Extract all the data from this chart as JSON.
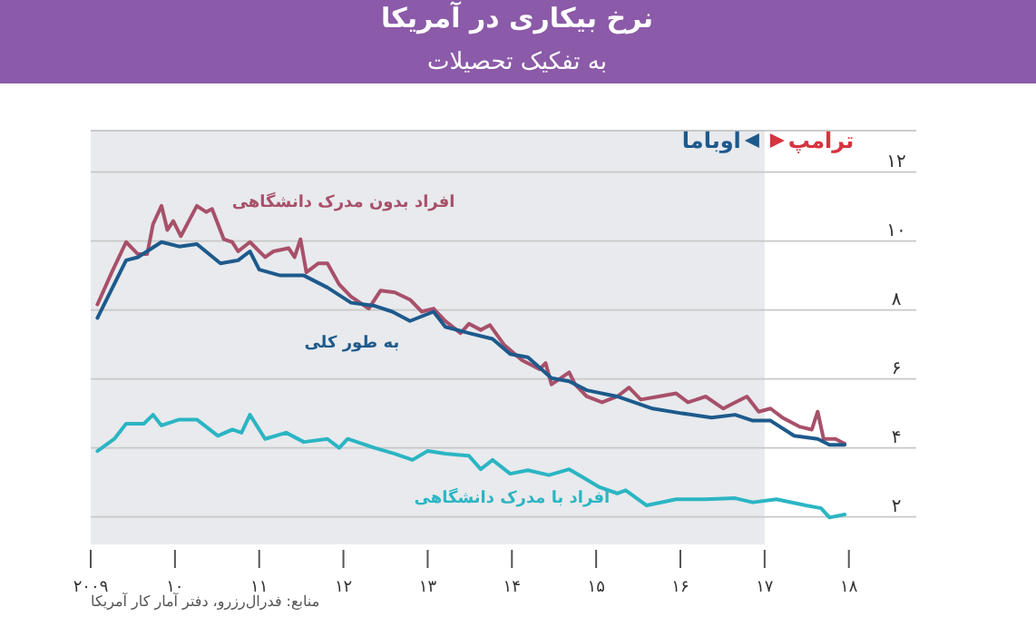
{
  "chart_data": {
    "type": "line",
    "title": "نرخ بیکاری در آمریکا",
    "subtitle": "به تفکیک تحصیلات",
    "xlim": [
      2009,
      2018.8
    ],
    "ylim": [
      1.2,
      13.2
    ],
    "xticks": [
      {
        "value": 2009,
        "label": "۲۰۰۹"
      },
      {
        "value": 2010,
        "label": "۱۰"
      },
      {
        "value": 2011,
        "label": "۱۱"
      },
      {
        "value": 2012,
        "label": "۱۲"
      },
      {
        "value": 2013,
        "label": "۱۳"
      },
      {
        "value": 2014,
        "label": "۱۴"
      },
      {
        "value": 2015,
        "label": "۱۵"
      },
      {
        "value": 2016,
        "label": "۱۶"
      },
      {
        "value": 2017,
        "label": "۱۷"
      },
      {
        "value": 2018,
        "label": "۱۸"
      }
    ],
    "yticks": [
      {
        "value": 2,
        "label": "۲"
      },
      {
        "value": 4,
        "label": "۴"
      },
      {
        "value": 6,
        "label": "۶"
      },
      {
        "value": 8,
        "label": "۸"
      },
      {
        "value": 10,
        "label": "۱۰"
      },
      {
        "value": 12,
        "label": "۱۲"
      }
    ],
    "grid": "y",
    "legend": false,
    "marker": "none",
    "line_style": "solid",
    "bands": [
      {
        "axis": "x",
        "from": 2009,
        "to": 2017,
        "label": "اوباما",
        "color": "#e8eaed"
      }
    ],
    "series": [
      {
        "name": "افراد بدون مدرک دانشگاهی",
        "color": "#a8506a",
        "x": [
          2009.08,
          2009.25,
          2009.42,
          2009.56,
          2009.67,
          2009.74,
          2009.84,
          2009.91,
          2009.98,
          2010.07,
          2010.26,
          2010.37,
          2010.44,
          2010.58,
          2010.68,
          2010.75,
          2010.89,
          2011.07,
          2011.17,
          2011.35,
          2011.42,
          2011.49,
          2011.56,
          2011.7,
          2011.81,
          2011.95,
          2012.09,
          2012.3,
          2012.44,
          2012.61,
          2012.79,
          2012.93,
          2013.07,
          2013.21,
          2013.39,
          2013.49,
          2013.63,
          2013.74,
          2013.91,
          2014.12,
          2014.33,
          2014.4,
          2014.47,
          2014.68,
          2014.75,
          2014.89,
          2015.07,
          2015.25,
          2015.39,
          2015.53,
          2015.74,
          2015.95,
          2016.09,
          2016.3,
          2016.51,
          2016.65,
          2016.79,
          2016.93,
          2017.07,
          2017.21,
          2017.42,
          2017.56,
          2017.63,
          2017.7,
          2017.84,
          2017.95
        ],
        "values": [
          8.16,
          9.09,
          9.97,
          9.62,
          9.62,
          10.49,
          11.02,
          10.32,
          10.58,
          10.14,
          11.02,
          10.84,
          10.93,
          10.05,
          9.97,
          9.7,
          9.97,
          9.53,
          9.7,
          9.79,
          9.53,
          10.05,
          9.09,
          9.35,
          9.35,
          8.74,
          8.39,
          8.04,
          8.56,
          8.51,
          8.3,
          7.95,
          8.04,
          7.68,
          7.33,
          7.6,
          7.42,
          7.56,
          6.98,
          6.54,
          6.28,
          6.46,
          5.84,
          6.19,
          5.84,
          5.49,
          5.32,
          5.49,
          5.75,
          5.4,
          5.49,
          5.58,
          5.32,
          5.49,
          5.14,
          5.32,
          5.49,
          5.05,
          5.14,
          4.88,
          4.61,
          4.53,
          5.05,
          4.26,
          4.26,
          4.12
        ]
      },
      {
        "name": "به طور کلی",
        "color": "#1d5a8c",
        "x": [
          2009.08,
          2009.42,
          2009.56,
          2009.84,
          2010.05,
          2010.26,
          2010.54,
          2010.75,
          2010.89,
          2011.0,
          2011.25,
          2011.53,
          2011.81,
          2012.09,
          2012.37,
          2012.58,
          2012.79,
          2013.07,
          2013.21,
          2013.49,
          2013.77,
          2013.98,
          2014.19,
          2014.47,
          2014.68,
          2014.89,
          2015.25,
          2015.67,
          2016.02,
          2016.37,
          2016.65,
          2016.86,
          2017.07,
          2017.35,
          2017.63,
          2017.77,
          2017.95
        ],
        "values": [
          7.77,
          9.44,
          9.53,
          9.97,
          9.84,
          9.91,
          9.35,
          9.44,
          9.7,
          9.17,
          9.0,
          9.0,
          8.65,
          8.21,
          8.12,
          7.95,
          7.68,
          7.95,
          7.51,
          7.33,
          7.16,
          6.72,
          6.63,
          6.02,
          5.93,
          5.67,
          5.49,
          5.14,
          5.0,
          4.88,
          4.96,
          4.79,
          4.79,
          4.35,
          4.26,
          4.09,
          4.09
        ]
      },
      {
        "name": "افراد با مدرک دانشگاهی",
        "color": "#2bb5c3",
        "x": [
          2009.08,
          2009.28,
          2009.42,
          2009.63,
          2009.74,
          2009.84,
          2010.05,
          2010.26,
          2010.51,
          2010.68,
          2010.79,
          2010.89,
          2011.07,
          2011.32,
          2011.53,
          2011.81,
          2011.95,
          2012.05,
          2012.37,
          2012.61,
          2012.82,
          2013.0,
          2013.21,
          2013.49,
          2013.63,
          2013.77,
          2013.98,
          2014.19,
          2014.44,
          2014.68,
          2014.86,
          2015.04,
          2015.25,
          2015.35,
          2015.6,
          2015.95,
          2016.3,
          2016.65,
          2016.86,
          2017.14,
          2017.49,
          2017.67,
          2017.77,
          2017.95
        ],
        "values": [
          3.91,
          4.26,
          4.7,
          4.7,
          4.96,
          4.65,
          4.82,
          4.82,
          4.35,
          4.53,
          4.44,
          4.96,
          4.26,
          4.44,
          4.17,
          4.26,
          4.0,
          4.26,
          4.0,
          3.83,
          3.65,
          3.91,
          3.83,
          3.77,
          3.38,
          3.65,
          3.25,
          3.35,
          3.21,
          3.38,
          3.12,
          2.86,
          2.68,
          2.77,
          2.33,
          2.51,
          2.51,
          2.54,
          2.42,
          2.51,
          2.33,
          2.25,
          1.98,
          2.07
        ]
      }
    ],
    "annotations": [
      {
        "text": "ترامپ",
        "x": 2017,
        "y": 12.7
      },
      "منابع: فدرال‌رزرو، دفتر آمار کار آمریکا"
    ]
  }
}
